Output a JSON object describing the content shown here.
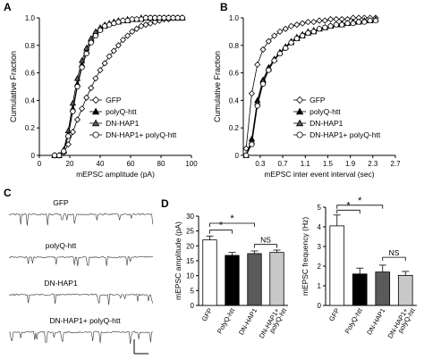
{
  "panel_letters": [
    "A",
    "B",
    "C",
    "D"
  ],
  "colors": {
    "gfp": "#ffffff",
    "polyq": "#000000",
    "dnhap1": "#5a5a5a",
    "combo": "#c8c8c8",
    "stroke": "#000000"
  },
  "panel_c": {
    "traces": [
      "GFP",
      "polyQ-htt",
      "DN-HAP1",
      "DN-HAP1+ polyQ-htt"
    ]
  },
  "chart_data": [
    {
      "type": "line",
      "panel": "A",
      "xlabel": "mEPSC amplitude (pA)",
      "ylabel": "Cumulative Fraction",
      "xlim": [
        0,
        100
      ],
      "ylim": [
        0,
        1.0
      ],
      "xticks": [
        "0",
        "20",
        "40",
        "60",
        "80",
        "100"
      ],
      "yticks": [
        "0",
        "0.2",
        "0.4",
        "0.6",
        "0.8",
        "1.0"
      ],
      "legend": [
        "GFP",
        "polyQ-htt",
        "DN-HAP1",
        "DN-HAP1+ polyQ-htt"
      ],
      "legend_position": "lower-right",
      "series": [
        {
          "name": "GFP",
          "marker": "diamond",
          "fill": "white",
          "x": [
            10,
            13,
            16,
            19,
            22,
            25,
            28,
            31,
            34,
            37,
            40,
            43,
            46,
            49,
            52,
            55,
            58,
            61,
            64,
            67,
            70,
            73,
            76,
            79,
            82,
            85,
            88,
            91,
            94
          ],
          "y": [
            0,
            0,
            0.02,
            0.08,
            0.17,
            0.26,
            0.34,
            0.42,
            0.49,
            0.56,
            0.62,
            0.67,
            0.72,
            0.76,
            0.8,
            0.84,
            0.87,
            0.9,
            0.92,
            0.94,
            0.95,
            0.96,
            0.97,
            0.98,
            0.99,
            0.99,
            1,
            1,
            1
          ]
        },
        {
          "name": "polyQ-htt",
          "marker": "triangle",
          "fill": "black",
          "x": [
            10,
            13,
            16,
            19,
            22,
            25,
            28,
            31,
            34,
            37,
            40,
            43,
            46,
            49,
            52,
            55,
            58,
            61,
            64,
            67,
            70,
            73,
            76,
            79,
            82,
            85,
            88,
            91,
            94
          ],
          "y": [
            0,
            0,
            0.03,
            0.15,
            0.34,
            0.52,
            0.66,
            0.76,
            0.84,
            0.89,
            0.92,
            0.94,
            0.96,
            0.97,
            0.97,
            0.98,
            0.98,
            0.99,
            0.99,
            0.99,
            1,
            1,
            1,
            1,
            1,
            1,
            1,
            1,
            1
          ]
        },
        {
          "name": "DN-HAP1",
          "marker": "triangle",
          "fill": "grey",
          "x": [
            10,
            13,
            16,
            19,
            22,
            25,
            28,
            31,
            34,
            37,
            40,
            43,
            46,
            49,
            52,
            55,
            58,
            61,
            64,
            67,
            70,
            73,
            76,
            79,
            82,
            85,
            88,
            91,
            94
          ],
          "y": [
            0,
            0,
            0.04,
            0.18,
            0.38,
            0.56,
            0.69,
            0.78,
            0.85,
            0.9,
            0.93,
            0.95,
            0.96,
            0.97,
            0.98,
            0.98,
            0.99,
            0.99,
            0.99,
            1,
            1,
            1,
            1,
            1,
            1,
            1,
            1,
            1,
            1
          ]
        },
        {
          "name": "DN-HAP1+ polyQ-htt",
          "marker": "circle",
          "fill": "white",
          "x": [
            10,
            13,
            16,
            19,
            22,
            25,
            28,
            31,
            34,
            37,
            40,
            43,
            46,
            49,
            52,
            55,
            58,
            61,
            64,
            67,
            70,
            73,
            76,
            79,
            82,
            85,
            88,
            91,
            94
          ],
          "y": [
            0,
            0,
            0.03,
            0.14,
            0.32,
            0.5,
            0.64,
            0.74,
            0.82,
            0.87,
            0.91,
            0.94,
            0.95,
            0.96,
            0.97,
            0.98,
            0.98,
            0.99,
            0.99,
            0.99,
            1,
            1,
            1,
            1,
            1,
            1,
            1,
            1,
            1
          ]
        }
      ]
    },
    {
      "type": "line",
      "panel": "B",
      "xlabel": "mEPSC inter event interval (sec)",
      "ylabel": "Cumulative Fraction",
      "xlim": [
        0,
        2.7
      ],
      "ylim": [
        0,
        1.0
      ],
      "xticks": [
        "0.3",
        "0.7",
        "1.1",
        "1.5",
        "1.9",
        "2.3",
        "2.7"
      ],
      "xtick_values": [
        0.3,
        0.7,
        1.1,
        1.5,
        1.9,
        2.3,
        2.7
      ],
      "yticks": [
        "0",
        "0.2",
        "0.4",
        "0.6",
        "0.8",
        "1.0"
      ],
      "legend": [
        "GFP",
        "polyQ-htt",
        "DN-HAP1",
        "DN-HAP1+ polyQ-htt"
      ],
      "legend_position": "lower-right",
      "series": [
        {
          "name": "GFP",
          "marker": "diamond",
          "fill": "white",
          "x": [
            0.05,
            0.15,
            0.25,
            0.35,
            0.45,
            0.55,
            0.65,
            0.75,
            0.85,
            0.95,
            1.05,
            1.15,
            1.25,
            1.35,
            1.45,
            1.55,
            1.65,
            1.75,
            1.85,
            1.95,
            2.05,
            2.15,
            2.25,
            2.35
          ],
          "y": [
            0.05,
            0.45,
            0.66,
            0.77,
            0.83,
            0.87,
            0.9,
            0.92,
            0.94,
            0.95,
            0.96,
            0.97,
            0.97,
            0.98,
            0.98,
            0.99,
            0.99,
            0.99,
            0.99,
            1,
            1,
            1,
            1,
            1
          ]
        },
        {
          "name": "polyQ-htt",
          "marker": "triangle",
          "fill": "black",
          "x": [
            0.05,
            0.15,
            0.25,
            0.35,
            0.45,
            0.55,
            0.65,
            0.75,
            0.85,
            0.95,
            1.05,
            1.15,
            1.25,
            1.35,
            1.45,
            1.55,
            1.65,
            1.75,
            1.85,
            1.95,
            2.05,
            2.15,
            2.25,
            2.35
          ],
          "y": [
            0,
            0.12,
            0.4,
            0.55,
            0.64,
            0.7,
            0.75,
            0.79,
            0.82,
            0.85,
            0.87,
            0.89,
            0.9,
            0.92,
            0.93,
            0.94,
            0.95,
            0.95,
            0.96,
            0.97,
            0.97,
            0.98,
            0.98,
            0.99
          ]
        },
        {
          "name": "DN-HAP1",
          "marker": "triangle",
          "fill": "grey",
          "x": [
            0.05,
            0.15,
            0.25,
            0.35,
            0.45,
            0.55,
            0.65,
            0.75,
            0.85,
            0.95,
            1.05,
            1.15,
            1.25,
            1.35,
            1.45,
            1.55,
            1.65,
            1.75,
            1.85,
            1.95,
            2.05,
            2.15,
            2.25,
            2.35
          ],
          "y": [
            0,
            0.1,
            0.38,
            0.54,
            0.63,
            0.7,
            0.75,
            0.79,
            0.83,
            0.86,
            0.88,
            0.9,
            0.91,
            0.92,
            0.93,
            0.94,
            0.95,
            0.96,
            0.96,
            0.97,
            0.97,
            0.98,
            0.98,
            0.99
          ]
        },
        {
          "name": "DN-HAP1+ polyQ-htt",
          "marker": "circle",
          "fill": "white",
          "x": [
            0.05,
            0.15,
            0.25,
            0.35,
            0.45,
            0.55,
            0.65,
            0.75,
            0.85,
            0.95,
            1.05,
            1.15,
            1.25,
            1.35,
            1.45,
            1.55,
            1.65,
            1.75,
            1.85,
            1.95,
            2.05,
            2.15,
            2.25,
            2.35
          ],
          "y": [
            0,
            0.08,
            0.36,
            0.52,
            0.62,
            0.69,
            0.74,
            0.78,
            0.82,
            0.85,
            0.87,
            0.89,
            0.9,
            0.92,
            0.93,
            0.94,
            0.95,
            0.95,
            0.96,
            0.96,
            0.97,
            0.97,
            0.98,
            0.98
          ]
        }
      ]
    },
    {
      "type": "bar",
      "panel": "D-left",
      "ylabel": "mEPSC amplitude (pA)",
      "ylim": [
        0,
        30
      ],
      "yticks": [
        "0",
        "5",
        "10",
        "15",
        "20",
        "25",
        "30"
      ],
      "categories": [
        "GFP",
        "PolyQ-htt",
        "DN-HAP1",
        "DN-HAP1+ polyQ-htt"
      ],
      "values": [
        22.0,
        16.8,
        17.4,
        17.8
      ],
      "errors": [
        1.3,
        1.0,
        0.9,
        0.8
      ],
      "significance": [
        {
          "from": 0,
          "to": 1,
          "label": "*"
        },
        {
          "from": 0,
          "to": 2,
          "label": "*"
        },
        {
          "from": 2,
          "to": 3,
          "label": "NS"
        }
      ]
    },
    {
      "type": "bar",
      "panel": "D-right",
      "ylabel": "mEPSC frequency (Hz)",
      "ylim": [
        0,
        5
      ],
      "yticks": [
        "0",
        "1",
        "2",
        "3",
        "4",
        "5"
      ],
      "categories": [
        "GFP",
        "PolyQ-htt",
        "DN-HAP1",
        "DN-HAP1+ polyQ-htt"
      ],
      "values": [
        4.05,
        1.6,
        1.7,
        1.53
      ],
      "errors": [
        0.55,
        0.3,
        0.35,
        0.2
      ],
      "significance": [
        {
          "from": 0,
          "to": 1,
          "label": "*"
        },
        {
          "from": 0,
          "to": 2,
          "label": "*"
        },
        {
          "from": 2,
          "to": 3,
          "label": "NS"
        }
      ]
    }
  ]
}
